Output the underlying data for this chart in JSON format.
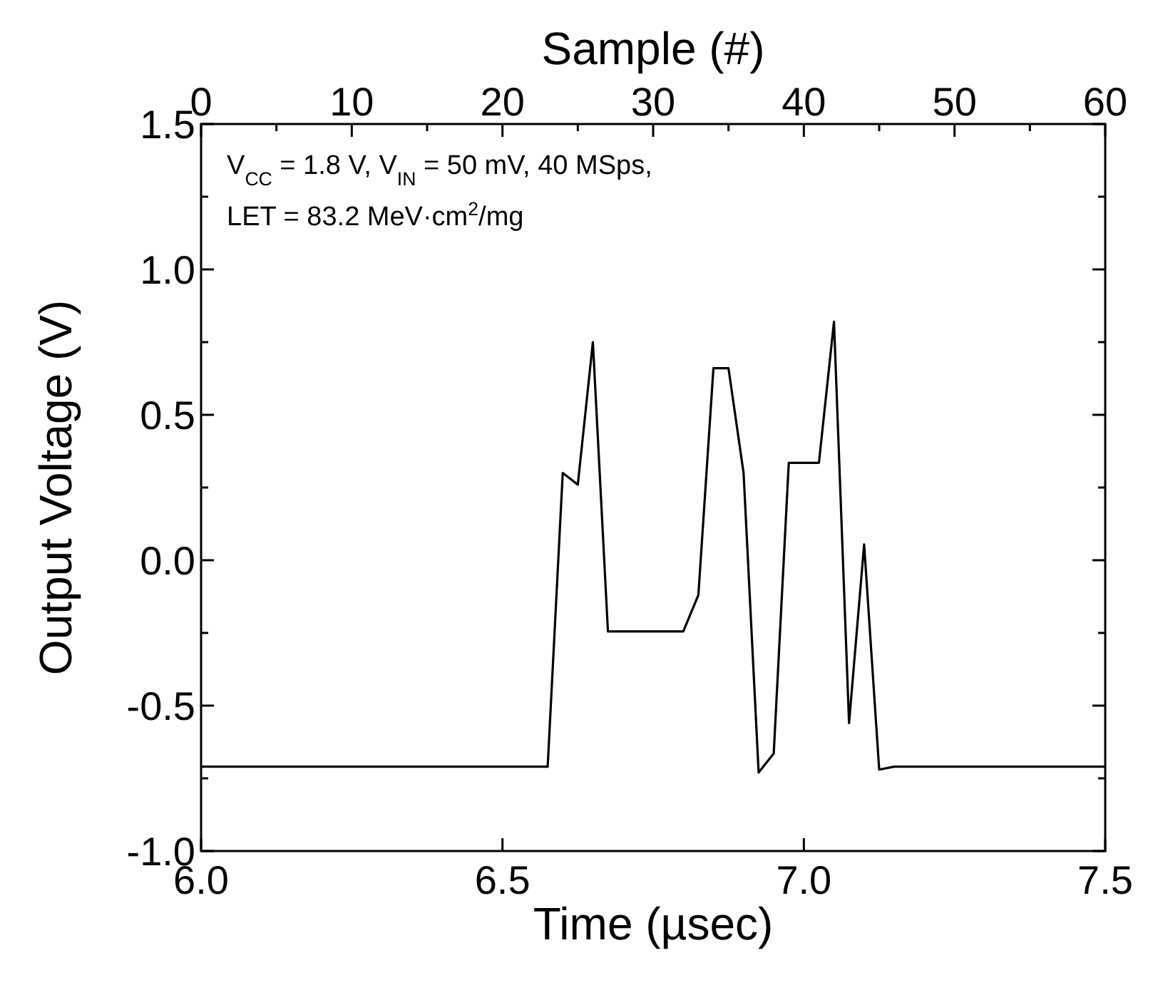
{
  "chart_data": {
    "type": "line",
    "xlabel": "Time (µsec)",
    "ylabel": "Output Voltage (V)",
    "x2label": "Sample (#)",
    "x": [
      6.0,
      6.575,
      6.6,
      6.625,
      6.65,
      6.675,
      6.8,
      6.825,
      6.85,
      6.875,
      6.9,
      6.925,
      6.95,
      6.975,
      7.025,
      7.05,
      7.075,
      7.1,
      7.125,
      7.15,
      7.5
    ],
    "series": [
      {
        "color": "#000000",
        "values": [
          -0.71,
          -0.71,
          0.3,
          0.26,
          0.75,
          -0.245,
          -0.245,
          -0.12,
          0.66,
          0.66,
          0.3,
          -0.73,
          -0.665,
          0.335,
          0.335,
          0.82,
          -0.56,
          0.054,
          -0.72,
          -0.71,
          -0.71
        ]
      }
    ],
    "xlim": [
      6.0,
      7.5
    ],
    "xticks": [
      {
        "value": 6.0,
        "label": "6.0"
      },
      6.5,
      {
        "value": 7.0,
        "label": "7.0"
      },
      7.5
    ],
    "ylim": [
      -1.0,
      1.5
    ],
    "yticks": [
      {
        "value": -1.0,
        "label": "-1.0"
      },
      {
        "value": -0.75,
        "label": null
      },
      -0.5,
      {
        "value": -0.25,
        "label": null
      },
      {
        "value": 0,
        "label": "0.0"
      },
      {
        "value": 0.25,
        "label": null
      },
      0.5,
      {
        "value": 0.75,
        "label": null
      },
      {
        "value": 1.0,
        "label": "1.0"
      },
      {
        "value": 1.25,
        "label": null
      },
      1.5
    ],
    "x2lim": [
      0,
      60
    ],
    "x2ticks": [
      0,
      {
        "value": 5,
        "label": null
      },
      10,
      {
        "value": 15,
        "label": null
      },
      20,
      {
        "value": 25,
        "label": null
      },
      30,
      {
        "value": 35,
        "label": null
      },
      40,
      {
        "value": 45,
        "label": null
      },
      50,
      {
        "value": 55,
        "label": null
      },
      60
    ],
    "annotations": [
      "V$_{CC}$ = 1.8 V, V$_{IN}$ = 50 mV, 40 MSps,",
      "LET = 83.2 MeV·cm$^{2}$/mg"
    ],
    "grid": false,
    "marker": "none",
    "line_style": "solid"
  }
}
